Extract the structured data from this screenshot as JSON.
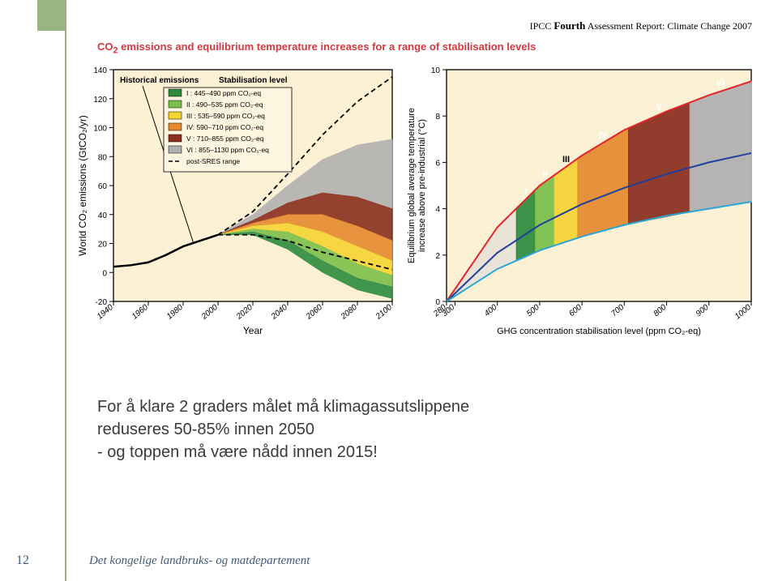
{
  "ipcc_line": {
    "prefix": "IPCC",
    "bold": "Fourth",
    "rest": "Assessment Report: Climate Change 2007"
  },
  "chart_title_html": "CO<tspan baseline-shift='sub' font-size='10'>2</tspan> emissions and equilibrium temperature increases for a range of stabilisation levels",
  "left_chart": {
    "bg": "#fcf1d4",
    "border": "#000000",
    "ylabel": "World CO₂ emissions (GtCO₂/yr)",
    "ylabel_size": 12,
    "xlabel": "Year",
    "xlabel_size": 12,
    "ylim": [
      -20,
      140
    ],
    "yticks": [
      -20,
      0,
      20,
      40,
      60,
      80,
      100,
      120,
      140
    ],
    "xlim": [
      1940,
      2100
    ],
    "xticks": [
      1940,
      1960,
      1980,
      2000,
      2020,
      2040,
      2060,
      2080,
      2100
    ],
    "tick_font": 10,
    "hist_label": "Historical emissions",
    "stab_label": "Stabilisation level",
    "legend_title": null,
    "legend": [
      {
        "label": "I : 445–490 ppm CO₂-eq",
        "fill": "#2e8b3e",
        "type": "box"
      },
      {
        "label": "II : 490–535 ppm CO₂-eq",
        "fill": "#7bbf4a",
        "type": "box"
      },
      {
        "label": "III : 535–590 ppm CO₂-eq",
        "fill": "#f5d432",
        "type": "box"
      },
      {
        "label": "IV: 590–710 ppm CO₂-eq",
        "fill": "#e58a2e",
        "type": "box"
      },
      {
        "label": "V : 710–855 ppm CO₂-eq",
        "fill": "#8a2e1e",
        "type": "box"
      },
      {
        "label": "VI : 855–1130 ppm CO₂-eq",
        "fill": "#b0b0b0",
        "type": "box"
      },
      {
        "label": "post-SRES range",
        "color": "#000",
        "type": "dash"
      }
    ],
    "historical": {
      "color": "#000",
      "width": 2.5,
      "years": [
        1940,
        1950,
        1960,
        1970,
        1980,
        1990,
        2000
      ],
      "vals": [
        4,
        5,
        7,
        12,
        18,
        22,
        26
      ]
    },
    "sres_upper": {
      "years": [
        2000,
        2020,
        2040,
        2060,
        2080,
        2100
      ],
      "vals": [
        26,
        42,
        68,
        95,
        118,
        135
      ]
    },
    "sres_lower": {
      "years": [
        2000,
        2020,
        2040,
        2060,
        2080,
        2100
      ],
      "vals": [
        26,
        26,
        22,
        14,
        8,
        2
      ]
    },
    "bands": [
      {
        "id": "VI",
        "fill": "#b0b0b0",
        "up": {
          "y": [
            2000,
            2020,
            2040,
            2060,
            2080,
            2100
          ],
          "v": [
            26,
            40,
            60,
            78,
            88,
            92
          ]
        },
        "lo": {
          "y": [
            2000,
            2020,
            2040,
            2060,
            2080,
            2100
          ],
          "v": [
            26,
            36,
            48,
            55,
            52,
            44
          ]
        }
      },
      {
        "id": "V",
        "fill": "#8a2e1e",
        "up": {
          "y": [
            2000,
            2020,
            2040,
            2060,
            2080,
            2100
          ],
          "v": [
            26,
            36,
            48,
            55,
            52,
            44
          ]
        },
        "lo": {
          "y": [
            2000,
            2020,
            2040,
            2060,
            2080,
            2100
          ],
          "v": [
            26,
            34,
            40,
            40,
            32,
            22
          ]
        }
      },
      {
        "id": "IV",
        "fill": "#e58a2e",
        "up": {
          "y": [
            2000,
            2020,
            2040,
            2060,
            2080,
            2100
          ],
          "v": [
            26,
            34,
            40,
            40,
            32,
            22
          ]
        },
        "lo": {
          "y": [
            2000,
            2020,
            2040,
            2060,
            2080,
            2100
          ],
          "v": [
            26,
            32,
            34,
            28,
            18,
            8
          ]
        }
      },
      {
        "id": "III",
        "fill": "#f5d432",
        "up": {
          "y": [
            2000,
            2020,
            2040,
            2060,
            2080,
            2100
          ],
          "v": [
            26,
            32,
            34,
            28,
            18,
            8
          ]
        },
        "lo": {
          "y": [
            2000,
            2020,
            2040,
            2060,
            2080,
            2100
          ],
          "v": [
            26,
            30,
            28,
            18,
            6,
            -2
          ]
        }
      },
      {
        "id": "II",
        "fill": "#7bbf4a",
        "up": {
          "y": [
            2000,
            2020,
            2040,
            2060,
            2080,
            2100
          ],
          "v": [
            26,
            30,
            28,
            18,
            6,
            -2
          ]
        },
        "lo": {
          "y": [
            2000,
            2020,
            2040,
            2060,
            2080,
            2100
          ],
          "v": [
            26,
            28,
            22,
            8,
            -4,
            -10
          ]
        }
      },
      {
        "id": "I",
        "fill": "#2e8b3e",
        "up": {
          "y": [
            2000,
            2020,
            2040,
            2060,
            2080,
            2100
          ],
          "v": [
            26,
            28,
            22,
            8,
            -4,
            -10
          ]
        },
        "lo": {
          "y": [
            2000,
            2020,
            2040,
            2060,
            2080,
            2100
          ],
          "v": [
            26,
            26,
            16,
            0,
            -12,
            -18
          ]
        }
      }
    ]
  },
  "right_chart": {
    "bg": "#fcf1d4",
    "border": "#000000",
    "ylabel": "Equilibrium global average temperature\nincrease above pre-industrial (°C)",
    "ylabel_size": 11,
    "xlabel": "GHG concentration stabilisation level (ppm CO₂-eq)",
    "xlabel_size": 11,
    "ylim": [
      0,
      10
    ],
    "yticks": [
      0,
      2,
      4,
      6,
      8,
      10
    ],
    "xlim": [
      280,
      1000
    ],
    "xticks": [
      280,
      300,
      400,
      500,
      600,
      700,
      800,
      900,
      1000
    ],
    "tick_font": 10,
    "upper_line": {
      "color": "#e3242b",
      "width": 2,
      "x": [
        280,
        400,
        500,
        600,
        700,
        800,
        900,
        1000
      ],
      "y": [
        0,
        3.2,
        5.0,
        6.3,
        7.4,
        8.2,
        8.9,
        9.5
      ]
    },
    "mid_line": {
      "color": "#1e3f9c",
      "width": 2,
      "x": [
        280,
        400,
        500,
        600,
        700,
        800,
        900,
        1000
      ],
      "y": [
        0,
        2.1,
        3.3,
        4.2,
        4.9,
        5.5,
        6.0,
        6.4
      ]
    },
    "lower_line": {
      "color": "#2aa5d6",
      "width": 2,
      "x": [
        280,
        400,
        500,
        600,
        700,
        800,
        900,
        1000
      ],
      "y": [
        0,
        1.4,
        2.2,
        2.8,
        3.3,
        3.7,
        4.0,
        4.3
      ]
    },
    "bars": [
      {
        "id": "I",
        "fill": "#2e8b3e",
        "x0": 445,
        "x1": 490,
        "label_color": "#fff"
      },
      {
        "id": "II",
        "fill": "#7bbf4a",
        "x0": 490,
        "x1": 535,
        "label_color": "#fff"
      },
      {
        "id": "III",
        "fill": "#f5d432",
        "x0": 535,
        "x1": 590,
        "label_color": "#000"
      },
      {
        "id": "IV",
        "fill": "#e58a2e",
        "x0": 590,
        "x1": 710,
        "label_color": "#fff"
      },
      {
        "id": "V",
        "fill": "#8a2e1e",
        "x0": 710,
        "x1": 855,
        "label_color": "#fff"
      },
      {
        "id": "VI",
        "fill": "#b0b0b0",
        "x0": 855,
        "x1": 1000,
        "label_color": "#fff"
      }
    ]
  },
  "body_text": {
    "l1": "For å klare 2 graders målet må klimagassutslippene",
    "l2": "reduseres 50-85% innen 2050",
    "l3": "- og toppen må være nådd innen 2015!"
  },
  "page_num": "12",
  "footer": "Det kongelige landbruks- og matdepartement"
}
